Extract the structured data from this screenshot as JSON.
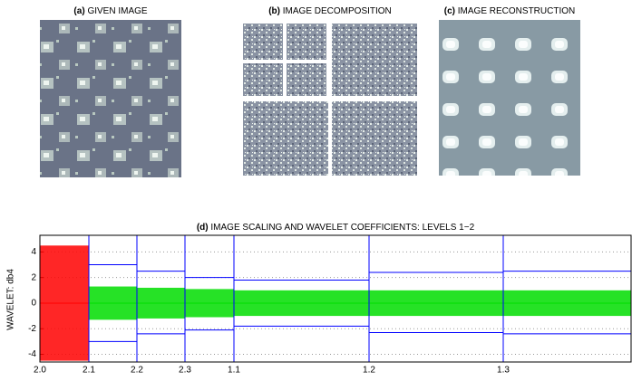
{
  "panels": [
    {
      "tag": "(a)",
      "title": "GIVEN IMAGE"
    },
    {
      "tag": "(b)",
      "title": "IMAGE DECOMPOSITION"
    },
    {
      "tag": "(c)",
      "title": "IMAGE RECONSTRUCTION"
    }
  ],
  "chart_data": {
    "type": "wavelet",
    "tag": "(d)",
    "title": "IMAGE SCALING AND WAVELET COEFFICIENTS: LEVELS 1−2",
    "ylabel": "WAVELET: db4",
    "ylim": [
      -4.6,
      5.3
    ],
    "yticks": [
      -4,
      -2,
      0,
      2,
      4
    ],
    "grid": true,
    "xtick_labels": [
      "2.0",
      "2.1",
      "2.2",
      "2.3",
      "1.1",
      "1.2",
      "1.3"
    ],
    "segment_colors": [
      "#ff0000",
      "#00dd00",
      "#00dd00",
      "#00dd00",
      "#00dd00",
      "#00dd00",
      "#00dd00"
    ],
    "amplitudes": [
      4.5,
      1.3,
      1.2,
      1.1,
      1.0,
      1.0,
      1.0
    ],
    "threshold_color": "#0000ff",
    "thresholds_upper": [
      null,
      3.0,
      2.5,
      2.0,
      1.8,
      2.4,
      2.5
    ],
    "thresholds_lower": [
      null,
      -3.0,
      -2.4,
      -2.1,
      -1.8,
      -2.3,
      -2.4
    ]
  }
}
